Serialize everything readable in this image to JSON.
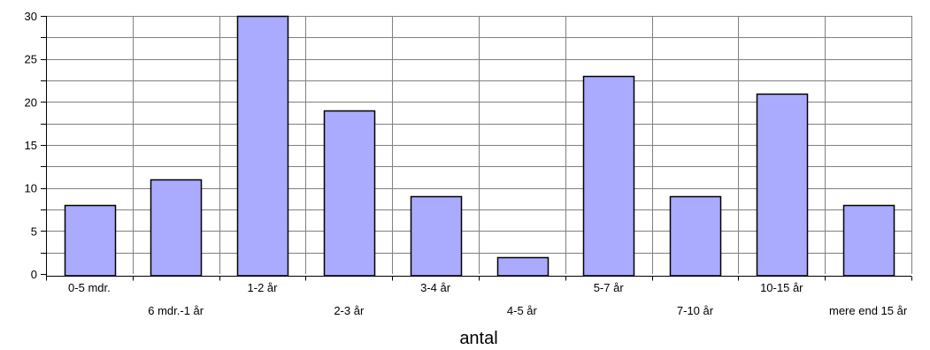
{
  "chart_data": {
    "type": "bar",
    "title": "",
    "xlabel": "antal",
    "ylabel": "",
    "categories": [
      "0-5 mdr.",
      "6 mdr.-1 år",
      "1-2 år",
      "2-3 år",
      "3-4 år",
      "4-5 år",
      "5-7 år",
      "7-10 år",
      "10-15 år",
      "mere end 15 år"
    ],
    "values": [
      8,
      11,
      30,
      19,
      9,
      2,
      23,
      9,
      21,
      8
    ],
    "ylim": [
      0,
      30
    ],
    "yticks": [
      0,
      5,
      10,
      15,
      20,
      25,
      30
    ],
    "grid": true,
    "legend": "none",
    "bar_color": "#aaaaff",
    "bar_edge_color": "#000000",
    "grid_color": "#808080"
  }
}
